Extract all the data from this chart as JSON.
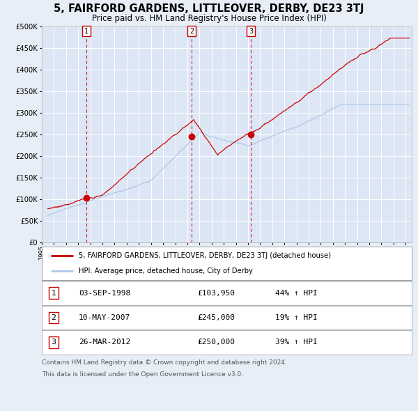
{
  "title": "5, FAIRFORD GARDENS, LITTLEOVER, DERBY, DE23 3TJ",
  "subtitle": "Price paid vs. HM Land Registry's House Price Index (HPI)",
  "title_fontsize": 10.5,
  "subtitle_fontsize": 8.5,
  "background_color": "#e8eef7",
  "plot_bg_color": "#dce6f5",
  "grid_color": "#ffffff",
  "hpi_line_color": "#aec6e8",
  "price_line_color": "#cc0000",
  "sale_marker_color": "#cc0000",
  "vline_color": "#cc0000",
  "ylim": [
    0,
    500000
  ],
  "yticks": [
    0,
    50000,
    100000,
    150000,
    200000,
    250000,
    300000,
    350000,
    400000,
    450000,
    500000
  ],
  "xlim_start": 1995.3,
  "xlim_end": 2025.5,
  "sales": [
    {
      "label": "1",
      "date_x": 1998.67,
      "price": 103950,
      "date_str": "03-SEP-1998",
      "price_str": "£103,950",
      "pct": "44% ↑ HPI"
    },
    {
      "label": "2",
      "date_x": 2007.36,
      "price": 245000,
      "date_str": "10-MAY-2007",
      "price_str": "£245,000",
      "pct": "19% ↑ HPI"
    },
    {
      "label": "3",
      "date_x": 2012.23,
      "price": 250000,
      "date_str": "26-MAR-2012",
      "price_str": "£250,000",
      "pct": "39% ↑ HPI"
    }
  ],
  "legend_entries": [
    "5, FAIRFORD GARDENS, LITTLEOVER, DERBY, DE23 3TJ (detached house)",
    "HPI: Average price, detached house, City of Derby"
  ],
  "footer_lines": [
    "Contains HM Land Registry data © Crown copyright and database right 2024.",
    "This data is licensed under the Open Government Licence v3.0."
  ],
  "footer_fontsize": 6.5,
  "table_label_fontsize": 8
}
